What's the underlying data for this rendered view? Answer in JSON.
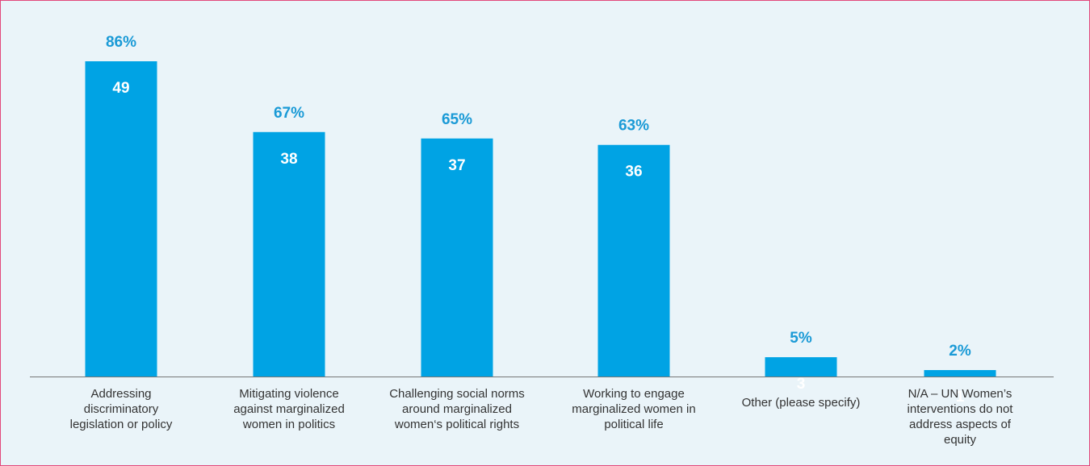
{
  "chart_data": {
    "type": "bar",
    "categories": [
      [
        "Addressing",
        "discriminatory",
        "legislation or policy"
      ],
      [
        "Mitigating violence",
        "against marginalized",
        "women in politics"
      ],
      [
        "Challenging social norms",
        "around marginalized",
        "women‘s political rights"
      ],
      [
        "Working to engage",
        "marginalized women in",
        "political life"
      ],
      [
        "Other (please specify)"
      ],
      [
        "N/A – UN Women’s",
        "interventions do not",
        "address aspects of",
        "equity"
      ]
    ],
    "values": [
      49,
      38,
      37,
      36,
      3,
      1
    ],
    "percent_labels": [
      "86%",
      "67%",
      "65%",
      "63%",
      "5%",
      "2%"
    ],
    "ylim": [
      0,
      49
    ],
    "grid": false,
    "colors": {
      "bar": "#00a3e4",
      "percent_label": "#1a9ad6",
      "value_label": "#ffffff",
      "frame_border": "#e2487c",
      "background": "#eaf4f9"
    }
  }
}
